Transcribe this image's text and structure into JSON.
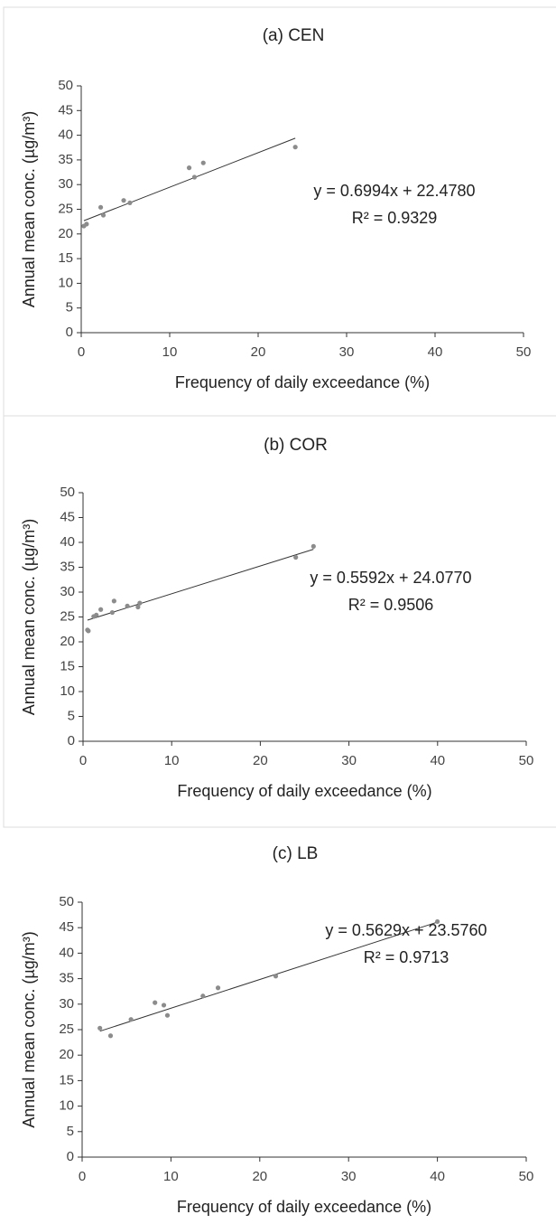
{
  "chart_data": [
    {
      "type": "scatter",
      "title": "(a) CEN",
      "x_label": "Frequency of daily exceedance (%)",
      "y_label": "Annual mean conc. (µg/m³)",
      "x": [
        0.3,
        0.6,
        2.2,
        2.5,
        4.8,
        5.5,
        12.2,
        12.8,
        13.8,
        24.2
      ],
      "values": [
        21.6,
        22.0,
        25.4,
        23.8,
        26.8,
        26.3,
        33.4,
        31.5,
        34.4,
        37.6
      ],
      "color": "#8c8c8c",
      "xlim": [
        0,
        50
      ],
      "ylim": [
        0,
        50
      ],
      "xticks": [
        0,
        10,
        20,
        30,
        40,
        50
      ],
      "yticks": [
        0,
        5,
        10,
        15,
        20,
        25,
        30,
        35,
        40,
        45,
        50
      ],
      "trendline": {
        "slope": 0.6994,
        "intercept": 22.478,
        "equation": "y = 0.6994x + 22.4780",
        "r_squared": "R² = 0.9329"
      }
    },
    {
      "type": "scatter",
      "title": "(b) COR",
      "x_label": "Frequency of daily exceedance (%)",
      "y_label": "Annual mean conc. (µg/m³)",
      "x": [
        0.5,
        0.6,
        1.2,
        1.5,
        2.0,
        3.3,
        3.5,
        5.0,
        6.2,
        6.4,
        24.0,
        26.0
      ],
      "values": [
        22.4,
        22.2,
        25.1,
        25.4,
        26.5,
        25.9,
        28.2,
        27.2,
        27.0,
        27.8,
        37.0,
        39.2
      ],
      "color": "#8c8c8c",
      "xlim": [
        0,
        50
      ],
      "ylim": [
        0,
        50
      ],
      "xticks": [
        0,
        10,
        20,
        30,
        40,
        50
      ],
      "yticks": [
        0,
        5,
        10,
        15,
        20,
        25,
        30,
        35,
        40,
        45,
        50
      ],
      "trendline": {
        "slope": 0.5592,
        "intercept": 24.077,
        "equation": "y = 0.5592x + 24.0770",
        "r_squared": "R² = 0.9506"
      }
    },
    {
      "type": "scatter",
      "title": "(c) LB",
      "x_label": "Frequency of daily exceedance (%)",
      "y_label": "Annual mean conc. (µg/m³)",
      "x": [
        2.0,
        3.2,
        5.5,
        8.2,
        9.2,
        9.6,
        13.6,
        15.3,
        21.8,
        40.0
      ],
      "values": [
        25.3,
        23.8,
        27.0,
        30.3,
        29.8,
        27.8,
        31.6,
        33.2,
        35.5,
        46.2
      ],
      "color": "#8c8c8c",
      "xlim": [
        0,
        50
      ],
      "ylim": [
        0,
        50
      ],
      "xticks": [
        0,
        10,
        20,
        30,
        40,
        50
      ],
      "yticks": [
        0,
        5,
        10,
        15,
        20,
        25,
        30,
        35,
        40,
        45,
        50
      ],
      "trendline": {
        "slope": 0.5629,
        "intercept": 23.576,
        "equation": "y = 0.5629x + 23.5760",
        "r_squared": "R² = 0.9713"
      }
    }
  ]
}
